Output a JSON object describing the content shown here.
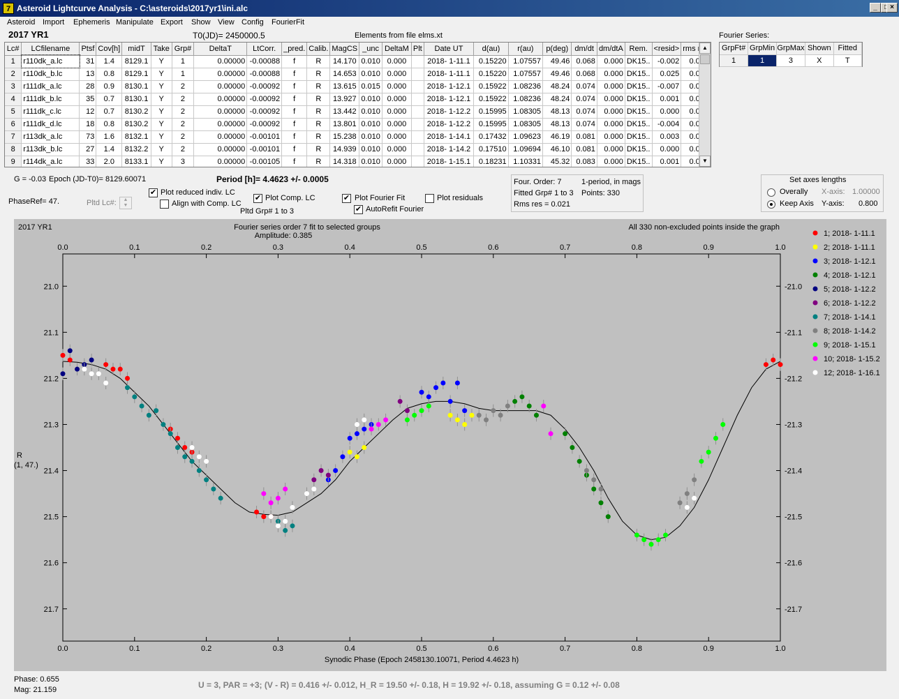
{
  "window": {
    "title": "Asteroid Lightcurve Analysis - C:\\asteroids\\2017yr1\\ini.alc",
    "icon": "7",
    "buttons": {
      "minimize": "_",
      "maximize": "□",
      "close": "×"
    }
  },
  "menu": [
    "Asteroid",
    "Import",
    "Ephemeris",
    "Manipulate",
    "Export",
    "Show",
    "View",
    "Config",
    "FourierFit"
  ],
  "header": {
    "object": "2017 YR1",
    "t0": "T0(JD)= 2450000.5",
    "elements": "Elements from file elms.xt",
    "fourier_label": "Fourier Series:"
  },
  "table": {
    "columns": [
      "Lc#",
      "LCfilename",
      "Ptsf",
      "Cov[h]",
      "midT",
      "Take",
      "Grp#",
      "DeltaT",
      "LtCorr.",
      "_pred.",
      "Calib.",
      "MagCS",
      "_unc",
      "DeltaM",
      "Plt",
      "Date UT",
      "d(au)",
      "r(au)",
      "p(deg)",
      "dm/dt",
      "dm/dtA",
      "Rem.",
      "<resid>",
      "rms res"
    ],
    "rows": [
      [
        "1",
        "r110dk_a.lc",
        "31",
        "1.4",
        "8129.1",
        "Y",
        "1",
        "0.00000",
        "-0.00088",
        "f",
        "R",
        "14.170",
        "0.010",
        "0.000",
        "",
        "2018- 1-11.1",
        "0.15220",
        "1.07557",
        "49.46",
        "0.068",
        "0.000",
        "DK15..",
        "-0.002",
        "0.016"
      ],
      [
        "2",
        "r110dk_b.lc",
        "13",
        "0.8",
        "8129.1",
        "Y",
        "1",
        "0.00000",
        "-0.00088",
        "f",
        "R",
        "14.653",
        "0.010",
        "0.000",
        "",
        "2018- 1-11.1",
        "0.15220",
        "1.07557",
        "49.46",
        "0.068",
        "0.000",
        "DK15..",
        "0.025",
        "0.029"
      ],
      [
        "3",
        "r111dk_a.lc",
        "28",
        "0.9",
        "8130.1",
        "Y",
        "2",
        "0.00000",
        "-0.00092",
        "f",
        "R",
        "13.615",
        "0.015",
        "0.000",
        "",
        "2018- 1-12.1",
        "0.15922",
        "1.08236",
        "48.24",
        "0.074",
        "0.000",
        "DK15..",
        "-0.007",
        "0.022"
      ],
      [
        "4",
        "r111dk_b.lc",
        "35",
        "0.7",
        "8130.1",
        "Y",
        "2",
        "0.00000",
        "-0.00092",
        "f",
        "R",
        "13.927",
        "0.010",
        "0.000",
        "",
        "2018- 1-12.1",
        "0.15922",
        "1.08236",
        "48.24",
        "0.074",
        "0.000",
        "DK15..",
        "0.001",
        "0.017"
      ],
      [
        "5",
        "r111dk_c.lc",
        "12",
        "0.7",
        "8130.2",
        "Y",
        "2",
        "0.00000",
        "-0.00092",
        "f",
        "R",
        "13.442",
        "0.010",
        "0.000",
        "",
        "2018- 1-12.2",
        "0.15995",
        "1.08305",
        "48.13",
        "0.074",
        "0.000",
        "DK15..",
        "0.000",
        "0.022"
      ],
      [
        "6",
        "r111dk_d.lc",
        "18",
        "0.8",
        "8130.2",
        "Y",
        "2",
        "0.00000",
        "-0.00092",
        "f",
        "R",
        "13.801",
        "0.010",
        "0.000",
        "",
        "2018- 1-12.2",
        "0.15995",
        "1.08305",
        "48.13",
        "0.074",
        "0.000",
        "DK15..",
        "-0.004",
        "0.015"
      ],
      [
        "7",
        "r113dk_a.lc",
        "73",
        "1.6",
        "8132.1",
        "Y",
        "2",
        "0.00000",
        "-0.00101",
        "f",
        "R",
        "15.238",
        "0.010",
        "0.000",
        "",
        "2018- 1-14.1",
        "0.17432",
        "1.09623",
        "46.19",
        "0.081",
        "0.000",
        "DK15..",
        "0.003",
        "0.020"
      ],
      [
        "8",
        "r113dk_b.lc",
        "27",
        "1.4",
        "8132.2",
        "Y",
        "2",
        "0.00000",
        "-0.00101",
        "f",
        "R",
        "14.939",
        "0.010",
        "0.000",
        "",
        "2018- 1-14.2",
        "0.17510",
        "1.09694",
        "46.10",
        "0.081",
        "0.000",
        "DK15..",
        "0.000",
        "0.022"
      ],
      [
        "9",
        "r114dk_a.lc",
        "33",
        "2.0",
        "8133.1",
        "Y",
        "3",
        "0.00000",
        "-0.00105",
        "f",
        "R",
        "14.318",
        "0.010",
        "0.000",
        "",
        "2018- 1-15.1",
        "0.18231",
        "1.10331",
        "45.32",
        "0.083",
        "0.000",
        "DK15..",
        "0.001",
        "0.016"
      ]
    ]
  },
  "fourier_table": {
    "columns": [
      "GrpFt#",
      "GrpMin",
      "GrpMax",
      "Shown",
      "Fitted"
    ],
    "row": [
      "1",
      "1",
      "3",
      "X",
      "T"
    ]
  },
  "controls": {
    "g": "G = -0.03",
    "epoch": "Epoch (JD-T0)= 8129.60071",
    "period": "Period [h]= 4.4623 +/- 0.0005",
    "phaseref": "PhaseRef= 47.",
    "pltd_lc": "Pltd Lc#:",
    "plot_reduced": "Plot reduced indiv. LC",
    "align_comp": "Align with Comp. LC",
    "plot_comp": "Plot Comp. LC",
    "pltd_grp": "Pltd Grp#  1   to    3",
    "plot_fourier": "Plot Fourier Fit",
    "autorefit": "AutoRefit Fourier",
    "plot_residuals": "Plot residuals",
    "four_order": "Four. Order:  7",
    "one_period": "1-period, in mags",
    "fitted_grp": "Fitted Grp# 1 to 3",
    "points": "Points: 330",
    "rms_res": "Rms res     = 0.021",
    "axes_title": "Set axes lengths",
    "overally": "Overally",
    "keep_axis": "Keep Axis",
    "x_axis_label": "X-axis:",
    "x_axis_value": "1.00000",
    "y_axis_label": "Y-axis:",
    "y_axis_value": "0.800",
    "check_mark": "✔"
  },
  "chart_data": {
    "type": "scatter",
    "title_left": "2017 YR1",
    "title_center": "Fourier series order 7 fit to selected groups",
    "amplitude": "Amplitude: 0.385",
    "title_right": "All 330 non-excluded points inside the graph",
    "xlabel": "Synodic Phase (Epoch 2458130.10071, Period 4.4623 h)",
    "ylabel": "R",
    "ylabel2": "(1, 47.)",
    "xlim": [
      0,
      1.0
    ],
    "ylim": [
      21.77,
      20.93
    ],
    "x_ticks": [
      "0.0",
      "0.1",
      "0.2",
      "0.3",
      "0.4",
      "0.5",
      "0.6",
      "0.7",
      "0.8",
      "0.9",
      "1.0"
    ],
    "y_ticks": [
      "21.0",
      "21.1",
      "21.2",
      "21.3",
      "21.4",
      "21.5",
      "21.6",
      "21.7"
    ],
    "curve": {
      "x": [
        0.0,
        0.02,
        0.04,
        0.06,
        0.08,
        0.1,
        0.12,
        0.14,
        0.16,
        0.18,
        0.2,
        0.22,
        0.24,
        0.26,
        0.28,
        0.3,
        0.32,
        0.34,
        0.36,
        0.38,
        0.4,
        0.42,
        0.44,
        0.46,
        0.48,
        0.5,
        0.52,
        0.54,
        0.56,
        0.58,
        0.6,
        0.62,
        0.64,
        0.66,
        0.68,
        0.7,
        0.72,
        0.74,
        0.76,
        0.78,
        0.8,
        0.82,
        0.84,
        0.86,
        0.88,
        0.9,
        0.92,
        0.94,
        0.96,
        0.98,
        1.0
      ],
      "y": [
        21.163,
        21.165,
        21.17,
        21.18,
        21.2,
        21.23,
        21.26,
        21.3,
        21.34,
        21.38,
        21.41,
        21.44,
        21.47,
        21.49,
        21.495,
        21.497,
        21.49,
        21.47,
        21.45,
        21.42,
        21.38,
        21.35,
        21.32,
        21.29,
        21.265,
        21.255,
        21.25,
        21.25,
        21.255,
        21.265,
        21.27,
        21.27,
        21.27,
        21.27,
        21.28,
        21.31,
        21.35,
        21.4,
        21.46,
        21.51,
        21.54,
        21.55,
        21.545,
        21.52,
        21.48,
        21.42,
        21.35,
        21.28,
        21.22,
        21.18,
        21.163
      ]
    },
    "series": [
      {
        "name": "1; 2018- 1-11.1",
        "color": "#ff0000",
        "x": [
          0.0,
          0.01,
          0.06,
          0.07,
          0.08,
          0.09,
          0.15,
          0.16,
          0.17,
          0.18,
          0.27,
          0.28,
          0.29,
          0.98,
          0.99,
          1.0
        ],
        "y": [
          21.15,
          21.16,
          21.17,
          21.18,
          21.18,
          21.2,
          21.31,
          21.33,
          21.35,
          21.36,
          21.49,
          21.5,
          21.5,
          21.17,
          21.16,
          21.17
        ]
      },
      {
        "name": "2; 2018- 1-11.1",
        "color": "#ffff00",
        "x": [
          0.4,
          0.41,
          0.42,
          0.54,
          0.55,
          0.56,
          0.57
        ],
        "y": [
          21.36,
          21.37,
          21.35,
          21.28,
          21.29,
          21.3,
          21.28
        ]
      },
      {
        "name": "3; 2018- 1-12.1",
        "color": "#0000ff",
        "x": [
          0.37,
          0.38,
          0.39,
          0.4,
          0.41,
          0.42,
          0.43,
          0.5,
          0.51,
          0.52,
          0.53,
          0.54,
          0.55,
          0.56
        ],
        "y": [
          21.42,
          21.4,
          21.37,
          21.33,
          21.32,
          21.31,
          21.3,
          21.23,
          21.24,
          21.22,
          21.21,
          21.25,
          21.21,
          21.27
        ]
      },
      {
        "name": "4; 2018- 1-12.1",
        "color": "#008000",
        "x": [
          0.63,
          0.64,
          0.65,
          0.66,
          0.7,
          0.71,
          0.72,
          0.73,
          0.74,
          0.75,
          0.76
        ],
        "y": [
          21.25,
          21.24,
          21.26,
          21.28,
          21.32,
          21.35,
          21.38,
          21.41,
          21.44,
          21.47,
          21.5
        ]
      },
      {
        "name": "5; 2018- 1-12.2",
        "color": "#000080",
        "x": [
          0.0,
          0.01,
          0.02,
          0.03,
          0.04
        ],
        "y": [
          21.19,
          21.14,
          21.18,
          21.17,
          21.16
        ]
      },
      {
        "name": "6; 2018- 1-12.2",
        "color": "#800080",
        "x": [
          0.35,
          0.36,
          0.37,
          0.47,
          0.48
        ],
        "y": [
          21.42,
          21.4,
          21.41,
          21.25,
          21.27
        ]
      },
      {
        "name": "7; 2018- 1-14.1",
        "color": "#008080",
        "x": [
          0.09,
          0.1,
          0.11,
          0.12,
          0.13,
          0.14,
          0.15,
          0.16,
          0.17,
          0.18,
          0.19,
          0.2,
          0.21,
          0.22,
          0.3,
          0.31,
          0.32
        ],
        "y": [
          21.22,
          21.24,
          21.26,
          21.28,
          21.27,
          21.3,
          21.32,
          21.35,
          21.37,
          21.38,
          21.4,
          21.42,
          21.44,
          21.46,
          21.51,
          21.53,
          21.52
        ]
      },
      {
        "name": "8; 2018- 1-14.2",
        "color": "#808080",
        "x": [
          0.58,
          0.59,
          0.6,
          0.61,
          0.62,
          0.73,
          0.74,
          0.75,
          0.86,
          0.87,
          0.88
        ],
        "y": [
          21.28,
          21.29,
          21.27,
          21.28,
          21.26,
          21.4,
          21.42,
          21.44,
          21.47,
          21.45,
          21.42
        ]
      },
      {
        "name": "9; 2018- 1-15.1",
        "color": "#00ff00",
        "x": [
          0.48,
          0.49,
          0.5,
          0.51,
          0.8,
          0.81,
          0.82,
          0.83,
          0.84,
          0.89,
          0.9,
          0.91,
          0.92
        ],
        "y": [
          21.29,
          21.28,
          21.27,
          21.26,
          21.54,
          21.55,
          21.56,
          21.55,
          21.54,
          21.38,
          21.36,
          21.33,
          21.3
        ]
      },
      {
        "name": "10; 2018- 1-15.2",
        "color": "#ff00ff",
        "x": [
          0.28,
          0.29,
          0.3,
          0.31,
          0.43,
          0.44,
          0.45,
          0.67,
          0.68
        ],
        "y": [
          21.45,
          21.47,
          21.46,
          21.44,
          21.31,
          21.3,
          21.29,
          21.26,
          21.32
        ]
      },
      {
        "name": "12; 2018- 1-16.1",
        "color": "#ffffff",
        "x": [
          0.03,
          0.04,
          0.05,
          0.06,
          0.18,
          0.19,
          0.2,
          0.29,
          0.3,
          0.31,
          0.32,
          0.34,
          0.35,
          0.41,
          0.42,
          0.87,
          0.88
        ],
        "y": [
          21.18,
          21.19,
          21.19,
          21.21,
          21.35,
          21.37,
          21.38,
          21.5,
          21.52,
          21.51,
          21.48,
          21.45,
          21.44,
          21.3,
          21.29,
          21.48,
          21.46
        ]
      }
    ]
  },
  "status": {
    "phase": "Phase:  0.655",
    "mag": "Mag:    21.159",
    "summary": "U = 3, PAR = +3; (V - R) = 0.416 +/- 0.012, H_R = 19.50 +/- 0.18, H = 19.92 +/- 0.18, assuming G = 0.12 +/- 0.08"
  }
}
